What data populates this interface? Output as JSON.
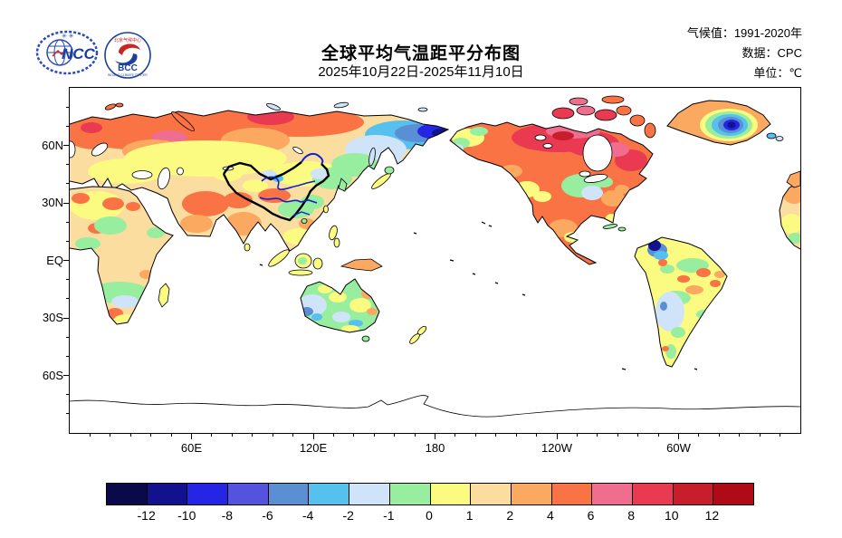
{
  "header": {
    "title": "全球平均气温距平分布图",
    "subtitle": "2025年10月22日-2025年11月10日",
    "meta": [
      {
        "label": "气候值：",
        "value": "1991-2020年"
      },
      {
        "label": "数据：",
        "value": "CPC"
      },
      {
        "label": "单位：",
        "value": "℃"
      }
    ],
    "logos": {
      "ncc": "NCC",
      "bcc": "BCC",
      "bcc_top": "北京气候中心",
      "bcc_bottom": "BEIJING CLIMATE CENTER"
    }
  },
  "map": {
    "type": "filled-anomaly-map",
    "projection": "cylindrical, 0E-360E, 90S-90N, Pacific-centered",
    "lat_ticks": [
      {
        "label": "60N",
        "lat": 60
      },
      {
        "label": "30N",
        "lat": 30
      },
      {
        "label": "EQ",
        "lat": 0
      },
      {
        "label": "30S",
        "lat": -30
      },
      {
        "label": "60S",
        "lat": -60
      }
    ],
    "lon_ticks": [
      {
        "label": "60E",
        "lon": 60
      },
      {
        "label": "120E",
        "lon": 120
      },
      {
        "label": "180",
        "lon": 180
      },
      {
        "label": "120W",
        "lon": 240
      },
      {
        "label": "60W",
        "lon": 300
      }
    ],
    "lat_minor_step_deg": 10,
    "lon_minor_step_deg": 10,
    "overlays": [
      "china-boundary-bold-black",
      "china-rivers-blue",
      "coastlines-black",
      "antarctica-coast-no-data",
      "oceans-no-data-white"
    ],
    "anomaly_regions": [
      {
        "region": "西伯利亚/欧洲北部",
        "anomaly_c": "+2 ~ +6"
      },
      {
        "region": "东北西伯利亚/楚科奇",
        "anomaly_c": "-4 ~ -10"
      },
      {
        "region": "中国东北及以北",
        "anomaly_c": "-1 ~ -2"
      },
      {
        "region": "加拿大",
        "anomaly_c": "+4 ~ +8"
      },
      {
        "region": "格陵兰内陆",
        "anomaly_c": "-6 ~ -12"
      },
      {
        "region": "南美西北部(哥伦比亚)",
        "anomaly_c": "-4 ~ -10"
      },
      {
        "region": "美国中部",
        "anomaly_c": "-1 ~ 0"
      },
      {
        "region": "澳大利亚中西部",
        "anomaly_c": "-1 ~ -4"
      },
      {
        "region": "印度/中东",
        "anomaly_c": "+2 ~ +6"
      },
      {
        "region": "南美中南部",
        "anomaly_c": "-1 ~ 0"
      },
      {
        "region": "非洲",
        "anomaly_c": "0 ~ +4"
      }
    ]
  },
  "colorbar": {
    "tick_labels": [
      "-12",
      "-10",
      "-8",
      "-6",
      "-4",
      "-2",
      "-1",
      "0",
      "1",
      "2",
      "4",
      "6",
      "8",
      "10",
      "12"
    ],
    "colors": [
      "#0A0A4B",
      "#12128F",
      "#2525E6",
      "#5353DE",
      "#5A8FD3",
      "#56C1EE",
      "#CFE4F8",
      "#97EE9E",
      "#FBFB82",
      "#FADD9F",
      "#FBA860",
      "#FA7345",
      "#EF6D8F",
      "#E93A52",
      "#C81E2B",
      "#AF0A18"
    ],
    "border_color": "#000000"
  }
}
